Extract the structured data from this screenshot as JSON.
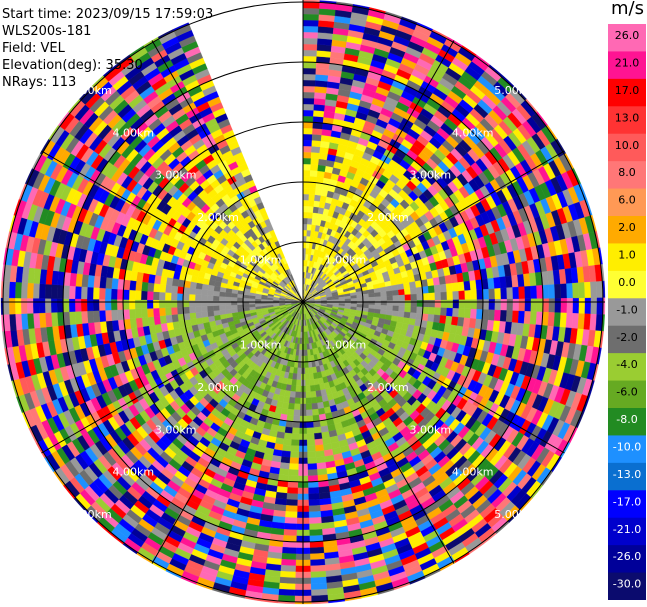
{
  "info": {
    "start_time": "Start time: 2023/09/15 17:59:03",
    "site": "WLS200s-181",
    "field": "Field: VEL",
    "elevation": "Elevation(deg): 35.30",
    "nrays": "NRays: 113"
  },
  "chart_data": {
    "type": "heatmap",
    "projection": "ppi-polar",
    "field": "VEL",
    "units": "m/s",
    "ring_labels": [
      "1.00km",
      "2.00km",
      "3.00km",
      "4.00km",
      "5.00km"
    ],
    "ray_count": 113,
    "missing_sector_deg": [
      337,
      360
    ],
    "colorbar": {
      "title": "m/s",
      "ticks": [
        "26.0",
        "21.0",
        "17.0",
        "13.0",
        "10.0",
        "8.0",
        "6.0",
        "2.0",
        "1.0",
        "0.0",
        "-1.0",
        "-2.0",
        "-4.0",
        "-6.0",
        "-8.0",
        "-10.0",
        "-13.0",
        "-17.0",
        "-21.0",
        "-26.0",
        "-30.0"
      ],
      "colors": [
        "#ff69b4",
        "#ff1493",
        "#ff0000",
        "#ff3333",
        "#ff5a5a",
        "#ff7777",
        "#ff9955",
        "#ffaa00",
        "#ffee00",
        "#ffff33",
        "#999999",
        "#6e6e6e",
        "#9acd32",
        "#66aa22",
        "#228b22",
        "#1e90ff",
        "#0a6fd0",
        "#0000ff",
        "#0000cc",
        "#000099",
        "#0b0b6e"
      ]
    }
  }
}
